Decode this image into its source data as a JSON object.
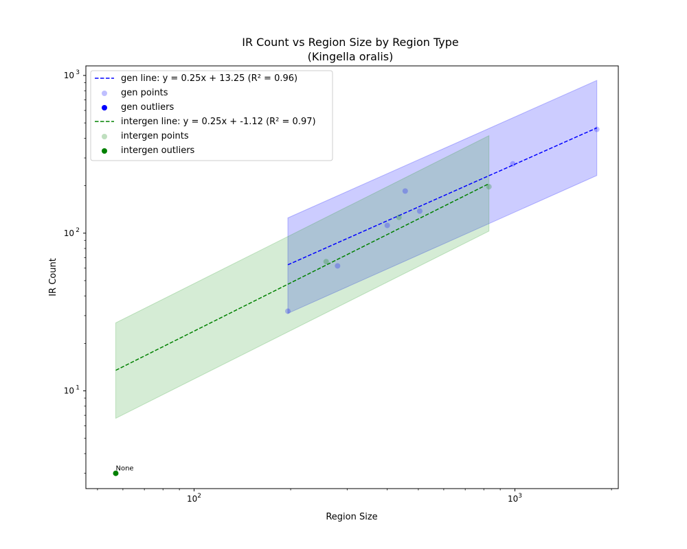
{
  "chart_data": {
    "type": "scatter",
    "title": "IR Count vs Region Size by Region Type",
    "subtitle": "(Kingella oralis)",
    "xlabel": "Region Size",
    "ylabel": "IR Count",
    "xscale": "log",
    "yscale": "log",
    "xlim": [
      46,
      2100
    ],
    "ylim": [
      2.4,
      1150
    ],
    "x_ticks": [
      {
        "value": 100,
        "base": "10",
        "exp": "2"
      },
      {
        "value": 1000,
        "base": "10",
        "exp": "3"
      }
    ],
    "y_ticks": [
      {
        "value": 10,
        "base": "10",
        "exp": "1"
      },
      {
        "value": 100,
        "base": "10",
        "exp": "2"
      },
      {
        "value": 1000,
        "base": "10",
        "exp": "3"
      }
    ],
    "grid": false,
    "legend_position": "top-left",
    "legend": [
      {
        "label": "gen line: y = 0.25x + 13.25 (R² = 0.96)",
        "kind": "line",
        "color": "#0000ff"
      },
      {
        "label": "gen points",
        "kind": "point",
        "color": "#0000ff",
        "alpha": 0.25
      },
      {
        "label": "gen outliers",
        "kind": "point",
        "color": "#0000ff",
        "alpha": 1
      },
      {
        "label": "intergen line: y = 0.25x + -1.12 (R² = 0.97)",
        "kind": "line",
        "color": "#008000"
      },
      {
        "label": "intergen points",
        "kind": "point",
        "color": "#008000",
        "alpha": 0.25
      },
      {
        "label": "intergen outliers",
        "kind": "point",
        "color": "#008000",
        "alpha": 1
      }
    ],
    "series": [
      {
        "name": "gen",
        "color": "#0000ff",
        "band_fill": "#0000ff",
        "band": [
          {
            "x": 196,
            "lower": 31,
            "upper": 125
          },
          {
            "x": 1800,
            "lower": 232,
            "upper": 930
          }
        ],
        "fit_line": [
          {
            "x": 196,
            "y": 63
          },
          {
            "x": 1800,
            "y": 465
          }
        ],
        "points": [
          {
            "x": 196,
            "y": 32
          },
          {
            "x": 280,
            "y": 62
          },
          {
            "x": 400,
            "y": 112
          },
          {
            "x": 455,
            "y": 185
          },
          {
            "x": 505,
            "y": 138
          },
          {
            "x": 985,
            "y": 275
          },
          {
            "x": 1800,
            "y": 455
          }
        ],
        "outliers": []
      },
      {
        "name": "intergen",
        "color": "#008000",
        "band_fill": "#2ca02c",
        "band": [
          {
            "x": 57,
            "lower": 6.7,
            "upper": 27
          },
          {
            "x": 830,
            "lower": 103,
            "upper": 415
          }
        ],
        "fit_line": [
          {
            "x": 57,
            "y": 13.5
          },
          {
            "x": 830,
            "y": 206
          }
        ],
        "points": [
          {
            "x": 258,
            "y": 66
          },
          {
            "x": 435,
            "y": 126
          },
          {
            "x": 830,
            "y": 197
          }
        ],
        "outliers": [
          {
            "x": 57,
            "y": 3,
            "label": "None"
          }
        ]
      }
    ]
  }
}
